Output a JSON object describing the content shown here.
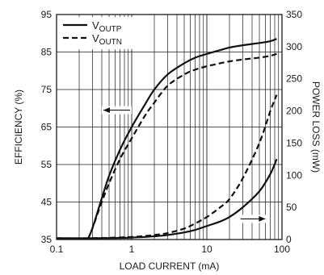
{
  "chart_data": {
    "type": "line",
    "xlabel": "LOAD CURRENT (mA)",
    "ylabel_left": "EFFICIENCY (%)",
    "ylabel_right": "POWER LOSS (mW)",
    "x_scale": "log",
    "xlim": [
      0.1,
      100
    ],
    "ylim_left": [
      35,
      95
    ],
    "ylim_right": [
      0,
      350
    ],
    "x_ticks": [
      {
        "value": 0.1,
        "label": "0.1"
      },
      {
        "value": 1,
        "label": "1"
      },
      {
        "value": 10,
        "label": "10"
      },
      {
        "value": 100,
        "label": "100"
      }
    ],
    "y_ticks_left": [
      {
        "value": 35,
        "label": "35"
      },
      {
        "value": 45,
        "label": "45"
      },
      {
        "value": 55,
        "label": "55"
      },
      {
        "value": 65,
        "label": "65"
      },
      {
        "value": 75,
        "label": "75"
      },
      {
        "value": 85,
        "label": "85"
      },
      {
        "value": 95,
        "label": "95"
      }
    ],
    "y_ticks_right": [
      {
        "value": 0,
        "label": "0"
      },
      {
        "value": 50,
        "label": "50"
      },
      {
        "value": 100,
        "label": "100"
      },
      {
        "value": 150,
        "label": "150"
      },
      {
        "value": 200,
        "label": "200"
      },
      {
        "value": 250,
        "label": "250"
      },
      {
        "value": 300,
        "label": "300"
      },
      {
        "value": 350,
        "label": "350"
      }
    ],
    "grid": true,
    "legend": {
      "position": "top-left",
      "entries": [
        {
          "main": "V",
          "sub": "OUTP",
          "style": "solid"
        },
        {
          "main": "V",
          "sub": "OUTN",
          "style": "dashed"
        }
      ]
    },
    "series": [
      {
        "axis": "left",
        "style": "solid",
        "legend_index": 0,
        "x": [
          0.26,
          0.3,
          0.4,
          0.5,
          0.7,
          1,
          1.5,
          2,
          3,
          5,
          7,
          10,
          15,
          20,
          30,
          50,
          70,
          85
        ],
        "y": [
          35,
          38,
          46,
          52,
          59,
          65,
          71,
          75,
          79,
          82,
          83.5,
          84.5,
          85.5,
          86.2,
          86.8,
          87.4,
          87.9,
          88.5
        ]
      },
      {
        "axis": "left",
        "style": "dashed",
        "legend_index": 1,
        "x": [
          0.26,
          0.3,
          0.4,
          0.5,
          0.7,
          1,
          1.5,
          2,
          3,
          5,
          7,
          10,
          15,
          20,
          30,
          50,
          70,
          85
        ],
        "y": [
          35,
          38,
          45,
          50,
          56.5,
          62,
          68,
          71.5,
          76,
          79,
          80.3,
          81.2,
          82,
          82.5,
          83,
          83.5,
          84,
          84.5
        ]
      },
      {
        "axis": "right",
        "style": "solid",
        "x": [
          0.1,
          0.3,
          1,
          2,
          3,
          5,
          7,
          10,
          15,
          20,
          30,
          50,
          70,
          85
        ],
        "y": [
          2,
          2,
          3,
          5,
          7,
          11,
          15,
          21,
          28,
          35,
          50,
          75,
          102,
          125
        ]
      },
      {
        "axis": "right",
        "style": "dashed",
        "x": [
          0.1,
          0.3,
          1,
          2,
          3,
          5,
          7,
          10,
          15,
          20,
          30,
          50,
          70,
          85
        ],
        "y": [
          2,
          2,
          4,
          7,
          10,
          17,
          25,
          35,
          50,
          63,
          95,
          150,
          200,
          225
        ]
      }
    ],
    "annotations": [
      {
        "type": "arrow",
        "direction": "left",
        "x_from": 0.95,
        "x_to": 0.42,
        "axis": "left",
        "y": 69.5
      },
      {
        "type": "arrow",
        "direction": "right",
        "x_from": 28,
        "x_to": 60,
        "axis": "left",
        "y": 40.5
      }
    ]
  }
}
